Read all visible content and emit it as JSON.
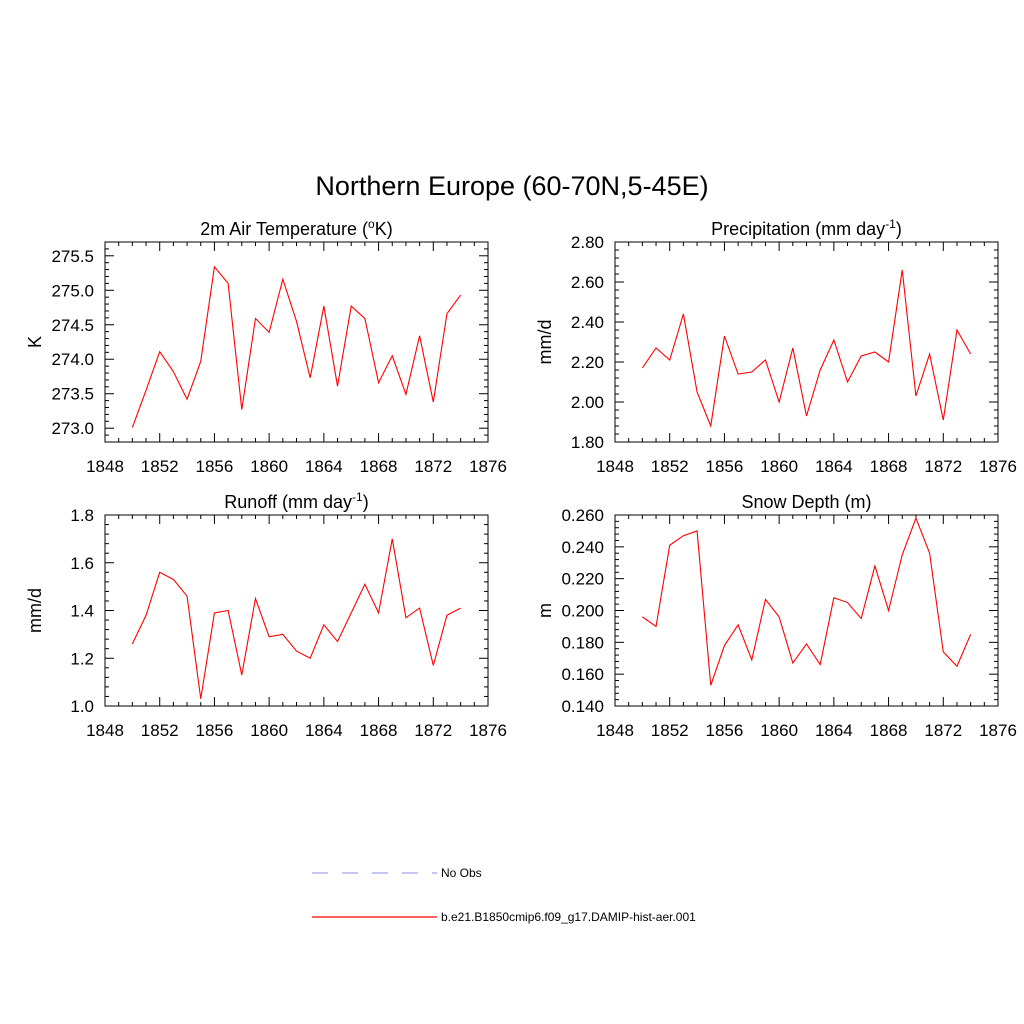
{
  "figure": {
    "title": "Northern Europe (60-70N,5-45E)"
  },
  "chart_data": [
    {
      "type": "line",
      "title": "2m Air Temperature (",
      "title_sup": "o",
      "title_suffix": "K)",
      "xlabel": "",
      "ylabel": "K",
      "xlim": [
        1848,
        1876
      ],
      "ylim": [
        272.8,
        275.7
      ],
      "xticks": [
        1848,
        1852,
        1856,
        1860,
        1864,
        1868,
        1872,
        1876
      ],
      "yticks": [
        273.0,
        273.5,
        274.0,
        274.5,
        275.0,
        275.5
      ],
      "ytick_labels": [
        "273.0",
        "273.5",
        "274.0",
        "274.5",
        "275.0",
        "275.5"
      ],
      "x": [
        1850,
        1851,
        1852,
        1853,
        1854,
        1855,
        1856,
        1857,
        1858,
        1859,
        1860,
        1861,
        1862,
        1863,
        1864,
        1865,
        1866,
        1867,
        1868,
        1869,
        1870,
        1871,
        1872,
        1873,
        1874
      ],
      "series": [
        {
          "name": "b.e21.B1850cmip6.f09_g17.DAMIP-hist-aer.001",
          "color": "#ff0000",
          "values": [
            273.01,
            273.55,
            274.11,
            273.82,
            273.42,
            273.97,
            275.34,
            275.1,
            273.27,
            274.59,
            274.39,
            275.16,
            274.55,
            273.73,
            274.77,
            273.61,
            274.77,
            274.59,
            273.66,
            274.05,
            273.49,
            274.34,
            273.38,
            274.66,
            274.93
          ]
        }
      ],
      "grid": false
    },
    {
      "type": "line",
      "title": "Precipitation (mm day",
      "title_sup": "-1",
      "title_suffix": ")",
      "xlabel": "",
      "ylabel": "mm/d",
      "xlim": [
        1848,
        1876
      ],
      "ylim": [
        1.8,
        2.8
      ],
      "xticks": [
        1848,
        1852,
        1856,
        1860,
        1864,
        1868,
        1872,
        1876
      ],
      "yticks": [
        1.8,
        2.0,
        2.2,
        2.4,
        2.6,
        2.8
      ],
      "ytick_labels": [
        "1.80",
        "2.00",
        "2.20",
        "2.40",
        "2.60",
        "2.80"
      ],
      "x": [
        1850,
        1851,
        1852,
        1853,
        1854,
        1855,
        1856,
        1857,
        1858,
        1859,
        1860,
        1861,
        1862,
        1863,
        1864,
        1865,
        1866,
        1867,
        1868,
        1869,
        1870,
        1871,
        1872,
        1873,
        1874
      ],
      "series": [
        {
          "name": "b.e21.B1850cmip6.f09_g17.DAMIP-hist-aer.001",
          "color": "#ff0000",
          "values": [
            2.17,
            2.27,
            2.21,
            2.44,
            2.05,
            1.88,
            2.33,
            2.14,
            2.15,
            2.21,
            2.0,
            2.27,
            1.93,
            2.16,
            2.31,
            2.1,
            2.23,
            2.25,
            2.2,
            2.66,
            2.03,
            2.24,
            1.91,
            2.36,
            2.24
          ]
        }
      ],
      "grid": false
    },
    {
      "type": "line",
      "title": "Runoff (mm day",
      "title_sup": "-1",
      "title_suffix": ")",
      "xlabel": "",
      "ylabel": "mm/d",
      "xlim": [
        1848,
        1876
      ],
      "ylim": [
        1.0,
        1.8
      ],
      "xticks": [
        1848,
        1852,
        1856,
        1860,
        1864,
        1868,
        1872,
        1876
      ],
      "yticks": [
        1.0,
        1.2,
        1.4,
        1.6,
        1.8
      ],
      "ytick_labels": [
        "1.0",
        "1.2",
        "1.4",
        "1.6",
        "1.8"
      ],
      "x": [
        1850,
        1851,
        1852,
        1853,
        1854,
        1855,
        1856,
        1857,
        1858,
        1859,
        1860,
        1861,
        1862,
        1863,
        1864,
        1865,
        1866,
        1867,
        1868,
        1869,
        1870,
        1871,
        1872,
        1873,
        1874
      ],
      "series": [
        {
          "name": "b.e21.B1850cmip6.f09_g17.DAMIP-hist-aer.001",
          "color": "#ff0000",
          "values": [
            1.26,
            1.38,
            1.56,
            1.53,
            1.46,
            1.03,
            1.39,
            1.4,
            1.13,
            1.45,
            1.29,
            1.3,
            1.23,
            1.2,
            1.34,
            1.27,
            1.39,
            1.51,
            1.39,
            1.7,
            1.37,
            1.41,
            1.17,
            1.38,
            1.41
          ]
        }
      ],
      "grid": false
    },
    {
      "type": "line",
      "title": "Snow Depth (m)",
      "title_sup": "",
      "title_suffix": "",
      "xlabel": "",
      "ylabel": "m",
      "xlim": [
        1848,
        1876
      ],
      "ylim": [
        0.14,
        0.26
      ],
      "xticks": [
        1848,
        1852,
        1856,
        1860,
        1864,
        1868,
        1872,
        1876
      ],
      "yticks": [
        0.14,
        0.16,
        0.18,
        0.2,
        0.22,
        0.24,
        0.26
      ],
      "ytick_labels": [
        "0.140",
        "0.160",
        "0.180",
        "0.200",
        "0.220",
        "0.240",
        "0.260"
      ],
      "x": [
        1850,
        1851,
        1852,
        1853,
        1854,
        1855,
        1856,
        1857,
        1858,
        1859,
        1860,
        1861,
        1862,
        1863,
        1864,
        1865,
        1866,
        1867,
        1868,
        1869,
        1870,
        1871,
        1872,
        1873,
        1874
      ],
      "series": [
        {
          "name": "b.e21.B1850cmip6.f09_g17.DAMIP-hist-aer.001",
          "color": "#ff0000",
          "values": [
            0.196,
            0.19,
            0.241,
            0.247,
            0.25,
            0.153,
            0.178,
            0.191,
            0.169,
            0.207,
            0.196,
            0.167,
            0.179,
            0.166,
            0.208,
            0.205,
            0.195,
            0.228,
            0.2,
            0.235,
            0.258,
            0.236,
            0.174,
            0.165,
            0.185
          ]
        }
      ],
      "grid": false
    }
  ],
  "legend": {
    "placement": "bottom-center",
    "items": [
      {
        "label": "No Obs",
        "color": "#a3a3ee",
        "dash": "dashed"
      },
      {
        "label": "b.e21.B1850cmip6.f09_g17.DAMIP-hist-aer.001",
        "color": "#ff0000",
        "dash": "solid"
      }
    ]
  }
}
